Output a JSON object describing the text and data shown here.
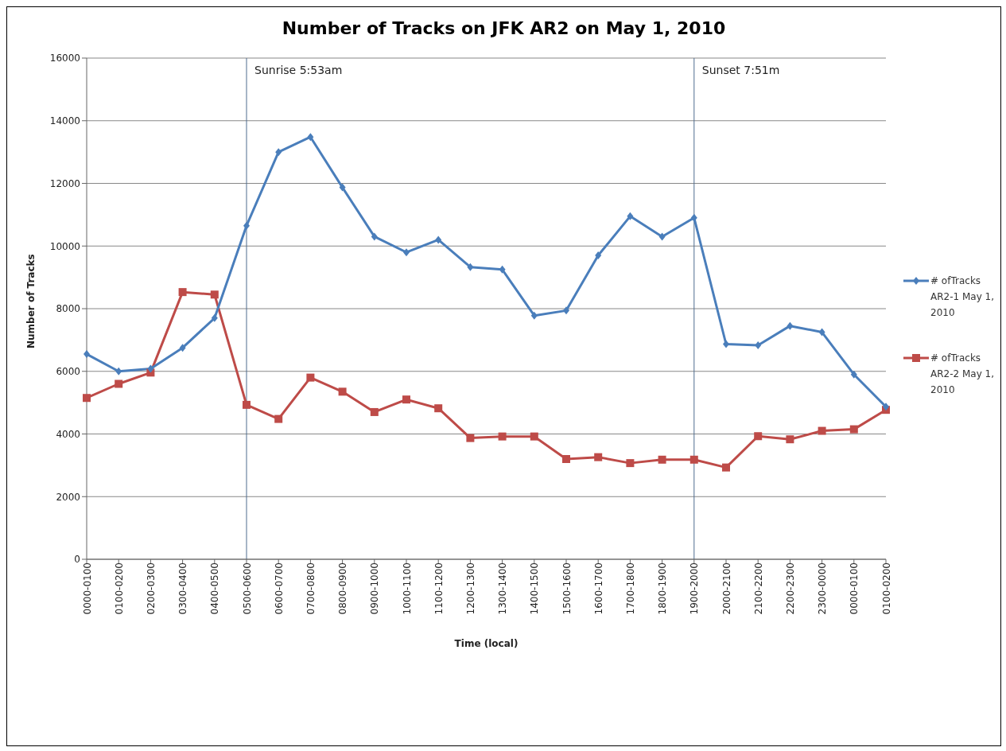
{
  "chart_data": {
    "type": "line",
    "title": "Number of Tracks on JFK AR2 on May 1, 2010",
    "xlabel": "Time (local)",
    "ylabel": "Number of Tracks",
    "categories": [
      "0000-0100",
      "0100-0200",
      "0200-0300",
      "0300-0400",
      "0400-0500",
      "0500-0600",
      "0600-0700",
      "0700-0800",
      "0800-0900",
      "0900-1000",
      "1000-1100",
      "1100-1200",
      "1200-1300",
      "1300-1400",
      "1400-1500",
      "1500-1600",
      "1600-1700",
      "1700-1800",
      "1800-1900",
      "1900-2000",
      "2000-2100",
      "2100-2200",
      "2200-2300",
      "2300-0000",
      "0000-0100",
      "0100-0200"
    ],
    "series": [
      {
        "name": "# ofTracks AR2-1 May 1, 2010",
        "color": "#4a7ebb",
        "marker": "diamond",
        "values": [
          6550,
          6000,
          6080,
          6750,
          7700,
          10650,
          13000,
          13480,
          11870,
          10300,
          9800,
          10200,
          9330,
          9250,
          7780,
          7940,
          9700,
          10950,
          10300,
          10900,
          6870,
          6830,
          7450,
          7250,
          5900,
          4870
        ]
      },
      {
        "name": "# ofTracks AR2-2 May 1, 2010",
        "color": "#be4b48",
        "marker": "square",
        "values": [
          5150,
          5600,
          5960,
          8530,
          8450,
          4930,
          4480,
          5800,
          5350,
          4700,
          5100,
          4820,
          3870,
          3920,
          3920,
          3200,
          3260,
          3070,
          3180,
          3180,
          2930,
          3930,
          3830,
          4100,
          4150,
          4770
        ]
      }
    ],
    "ylim": [
      0,
      16000
    ],
    "yticks": [
      0,
      2000,
      4000,
      6000,
      8000,
      10000,
      12000,
      14000,
      16000
    ],
    "grid": "y",
    "legend": "right",
    "ref_lines": [
      {
        "axis": "x",
        "value": "0500-0600",
        "label": "Sunrise 5:53am",
        "color": "#4f6d8f"
      },
      {
        "axis": "x",
        "value": "1900-2000",
        "label": "Sunset 7:51m",
        "color": "#4f6d8f"
      }
    ]
  }
}
